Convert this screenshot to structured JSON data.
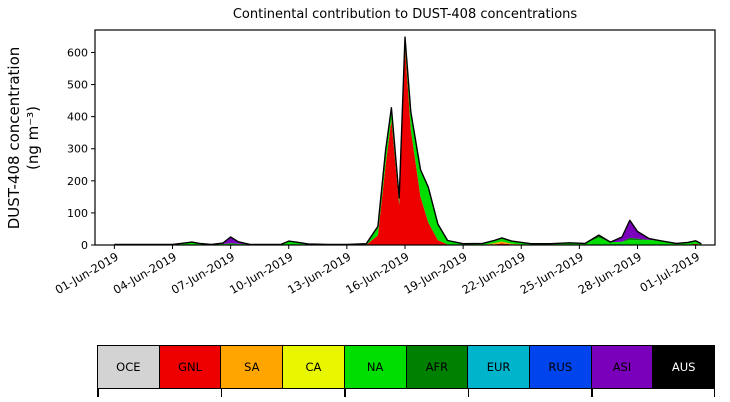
{
  "page": {
    "background": "#ffffff"
  },
  "chart_data": {
    "type": "area",
    "stacked": true,
    "title": "Continental contribution to DUST-408 concentrations",
    "ylabel_line1": "DUST-408 concentration",
    "ylabel_line2": "(ng m⁻³)",
    "grid": false,
    "legend_position": "bottom",
    "xlim": [
      -1,
      31
    ],
    "ylim": [
      0,
      670
    ],
    "yticks": [
      0,
      100,
      200,
      300,
      400,
      500,
      600
    ],
    "xticks": [
      0,
      3,
      6,
      9,
      12,
      15,
      18,
      21,
      24,
      27,
      30
    ],
    "xticklabels": [
      "01-Jun-2019",
      "04-Jun-2019",
      "07-Jun-2019",
      "10-Jun-2019",
      "13-Jun-2019",
      "16-Jun-2019",
      "19-Jun-2019",
      "22-Jun-2019",
      "25-Jun-2019",
      "28-Jun-2019",
      "01-Jul-2019"
    ],
    "x": [
      0,
      1,
      2,
      3,
      3.6,
      4,
      4.4,
      5,
      5.6,
      6,
      6.4,
      7,
      8,
      8.6,
      9,
      9.5,
      10,
      11,
      12,
      13,
      13.6,
      14,
      14.3,
      14.7,
      15,
      15.3,
      15.8,
      16.2,
      16.7,
      17.2,
      18,
      19,
      19.6,
      20,
      20.5,
      21.5,
      22.5,
      23.5,
      24.3,
      25,
      25.6,
      26.2,
      26.6,
      27,
      27.6,
      28.2,
      29,
      29.6,
      30,
      30.3
    ],
    "series": [
      {
        "name": "OCE",
        "color": "#d3d3d3",
        "values": []
      },
      {
        "name": "GNL",
        "color": "#ee0000",
        "values": [
          0,
          0,
          0,
          0,
          1,
          2,
          1,
          0,
          0,
          0,
          0,
          0,
          0,
          0,
          1,
          1,
          0,
          0,
          0,
          1,
          30,
          250,
          390,
          125,
          615,
          360,
          150,
          70,
          15,
          2,
          0,
          0,
          2,
          5,
          2,
          0,
          0,
          0,
          0,
          1,
          0,
          0,
          0,
          0,
          0,
          0,
          0,
          1,
          4,
          1
        ]
      },
      {
        "name": "SA",
        "color": "#ffa500",
        "values": [
          0,
          0,
          0,
          0,
          0,
          0,
          0,
          0,
          0,
          0,
          0,
          0,
          0,
          0,
          0,
          0,
          0,
          0,
          0,
          0,
          0,
          0,
          0,
          0,
          0,
          0,
          0,
          0,
          0,
          0,
          0,
          0,
          4,
          6,
          2,
          0,
          0,
          0,
          0,
          0,
          0,
          0,
          0,
          0,
          0,
          0,
          0,
          0,
          0,
          0
        ]
      },
      {
        "name": "CA",
        "color": "#e8f700",
        "values": []
      },
      {
        "name": "NA",
        "color": "#00dd00",
        "values": [
          2,
          2,
          2,
          2,
          5,
          7,
          4,
          2,
          3,
          5,
          4,
          2,
          2,
          2,
          11,
          7,
          3,
          2,
          2,
          3,
          28,
          45,
          38,
          22,
          33,
          55,
          85,
          110,
          50,
          12,
          4,
          5,
          8,
          11,
          8,
          4,
          4,
          7,
          5,
          22,
          9,
          10,
          16,
          15,
          16,
          13,
          5,
          7,
          9,
          3
        ]
      },
      {
        "name": "AFR",
        "color": "#008000",
        "values": [
          0,
          0,
          0,
          0,
          0,
          0,
          0,
          0,
          0,
          0,
          0,
          0,
          0,
          0,
          0,
          0,
          0,
          0,
          0,
          0,
          0,
          0,
          0,
          0,
          0,
          0,
          0,
          0,
          0,
          0,
          0,
          0,
          0,
          0,
          0,
          0,
          0,
          0,
          0,
          8,
          0,
          0,
          6,
          5,
          0,
          0,
          0,
          0,
          0,
          0
        ]
      },
      {
        "name": "EUR",
        "color": "#00b4cc",
        "values": []
      },
      {
        "name": "RUS",
        "color": "#0044ee",
        "values": []
      },
      {
        "name": "ASI",
        "color": "#7a00bb",
        "values": [
          0,
          0,
          0,
          0,
          0,
          0,
          0,
          0,
          3,
          20,
          6,
          0,
          0,
          0,
          0,
          0,
          0,
          0,
          0,
          0,
          0,
          0,
          0,
          0,
          0,
          0,
          0,
          0,
          0,
          0,
          0,
          0,
          0,
          0,
          0,
          0,
          0,
          0,
          0,
          0,
          0,
          15,
          55,
          22,
          4,
          0,
          0,
          0,
          0,
          0
        ]
      },
      {
        "name": "AUS",
        "color": "#000000",
        "values": []
      }
    ]
  },
  "legend": {
    "items": [
      {
        "label": "OCE",
        "color": "#d3d3d3",
        "text_color": "#000000"
      },
      {
        "label": "GNL",
        "color": "#ee0000",
        "text_color": "#000000"
      },
      {
        "label": "SA",
        "color": "#ffa500",
        "text_color": "#000000"
      },
      {
        "label": "CA",
        "color": "#e8f700",
        "text_color": "#000000"
      },
      {
        "label": "NA",
        "color": "#00dd00",
        "text_color": "#000000"
      },
      {
        "label": "AFR",
        "color": "#008000",
        "text_color": "#000000"
      },
      {
        "label": "EUR",
        "color": "#00b4cc",
        "text_color": "#000000"
      },
      {
        "label": "RUS",
        "color": "#0044ee",
        "text_color": "#000000"
      },
      {
        "label": "ASI",
        "color": "#7a00bb",
        "text_color": "#000000"
      },
      {
        "label": "AUS",
        "color": "#000000",
        "text_color": "#ffffff"
      }
    ]
  }
}
